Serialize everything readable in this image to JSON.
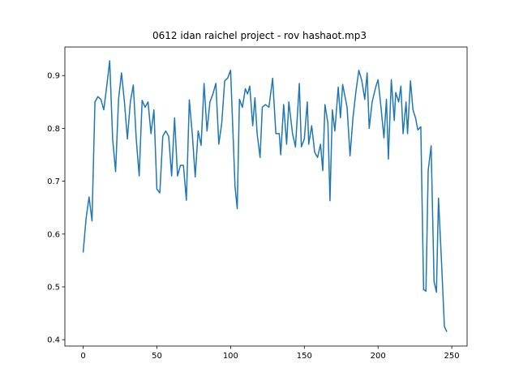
{
  "chart_data": {
    "type": "line",
    "title": "0612 idan raichel project - rov hashaot.mp3",
    "x": [
      0,
      2,
      4,
      6,
      8,
      10,
      12,
      14,
      16,
      18,
      20,
      22,
      24,
      26,
      28,
      30,
      32,
      34,
      36,
      38,
      40,
      42,
      44,
      46,
      48,
      50,
      52,
      54,
      56,
      58,
      60,
      62,
      64,
      66,
      68,
      70,
      72,
      74,
      76,
      78,
      80,
      82,
      84,
      86,
      88,
      90,
      92,
      94,
      96,
      98,
      100,
      103,
      104.5,
      106,
      108,
      110,
      111.5,
      113,
      115,
      116.5,
      118,
      120,
      121.5,
      123.6,
      126,
      128.5,
      130.7,
      133,
      134,
      136,
      138,
      139.5,
      142,
      144,
      146.6,
      148,
      150,
      152,
      153,
      155,
      157,
      159,
      161,
      162.5,
      164,
      166,
      167.4,
      169,
      170.7,
      173,
      174.5,
      176,
      179,
      181,
      183,
      185,
      187,
      189,
      191,
      192.6,
      194,
      196,
      198.6,
      200,
      202,
      204,
      205.7,
      207,
      209,
      211,
      212,
      214,
      215.5,
      217,
      219,
      220,
      222,
      223.7,
      225.4,
      227,
      229,
      230.9,
      232.5,
      234,
      236,
      238,
      239.6,
      241,
      243,
      245,
      246.7
    ],
    "series": [
      {
        "color": "#1f77b4",
        "values": [
          0.565,
          0.63,
          0.67,
          0.625,
          0.85,
          0.86,
          0.855,
          0.835,
          0.88,
          0.928,
          0.78,
          0.718,
          0.855,
          0.905,
          0.85,
          0.78,
          0.85,
          0.882,
          0.78,
          0.71,
          0.853,
          0.84,
          0.85,
          0.79,
          0.835,
          0.685,
          0.678,
          0.785,
          0.795,
          0.785,
          0.71,
          0.82,
          0.71,
          0.73,
          0.73,
          0.664,
          0.854,
          0.79,
          0.708,
          0.795,
          0.768,
          0.885,
          0.795,
          0.85,
          0.865,
          0.885,
          0.77,
          0.81,
          0.89,
          0.895,
          0.91,
          0.69,
          0.648,
          0.855,
          0.84,
          0.875,
          0.865,
          0.88,
          0.805,
          0.858,
          0.79,
          0.745,
          0.84,
          0.845,
          0.84,
          0.895,
          0.79,
          0.79,
          0.75,
          0.845,
          0.77,
          0.85,
          0.79,
          0.765,
          0.885,
          0.765,
          0.78,
          0.85,
          0.77,
          0.805,
          0.755,
          0.745,
          0.77,
          0.72,
          0.845,
          0.81,
          0.663,
          0.835,
          0.795,
          0.878,
          0.82,
          0.883,
          0.84,
          0.748,
          0.82,
          0.87,
          0.91,
          0.89,
          0.855,
          0.905,
          0.8,
          0.85,
          0.88,
          0.892,
          0.84,
          0.782,
          0.855,
          0.742,
          0.892,
          0.815,
          0.868,
          0.85,
          0.88,
          0.79,
          0.85,
          0.79,
          0.89,
          0.835,
          0.82,
          0.797,
          0.803,
          0.495,
          0.492,
          0.72,
          0.767,
          0.51,
          0.49,
          0.668,
          0.55,
          0.425,
          0.415
        ]
      }
    ],
    "xlim": [
      -12.4,
      260.4
    ],
    "ylim": [
      0.388,
      0.954
    ],
    "xticks": [
      0,
      50,
      100,
      150,
      200,
      250
    ],
    "yticks": [
      0.4,
      0.5,
      0.6,
      0.7,
      0.8,
      0.9
    ]
  }
}
